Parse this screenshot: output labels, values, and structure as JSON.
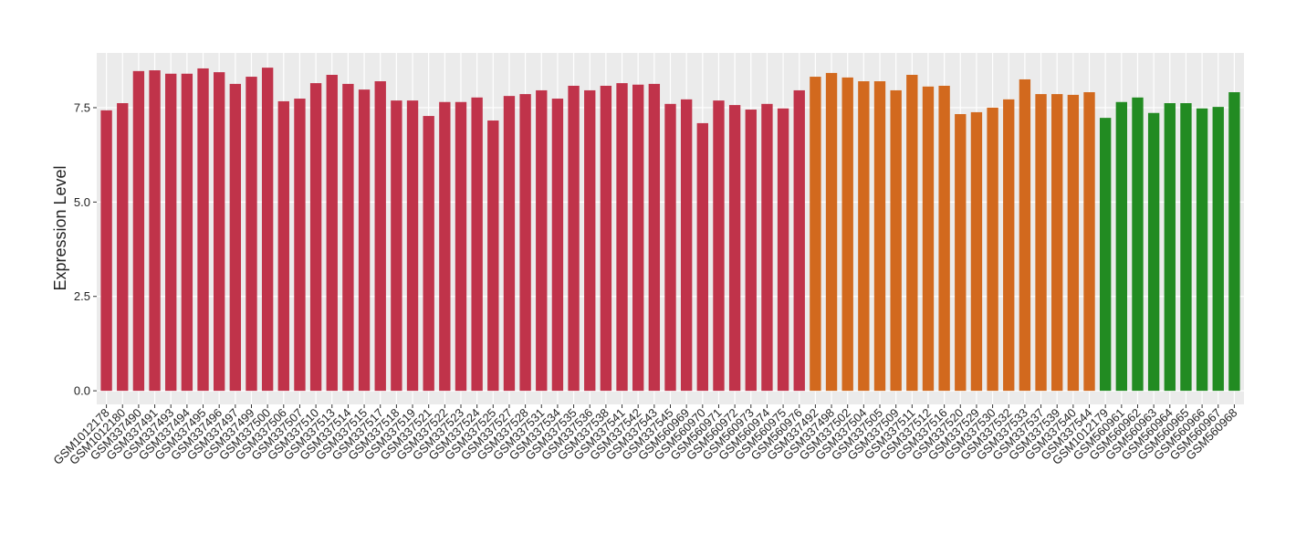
{
  "chart_data": {
    "type": "bar",
    "y_label": "Expression Level",
    "categories": [
      "GSM1012178",
      "GSM1012180",
      "GSM337490",
      "GSM337491",
      "GSM337493",
      "GSM337494",
      "GSM337495",
      "GSM337496",
      "GSM337497",
      "GSM337499",
      "GSM337500",
      "GSM337506",
      "GSM337507",
      "GSM337510",
      "GSM337513",
      "GSM337514",
      "GSM337515",
      "GSM337517",
      "GSM337518",
      "GSM337519",
      "GSM337521",
      "GSM337522",
      "GSM337523",
      "GSM337524",
      "GSM337525",
      "GSM337527",
      "GSM337528",
      "GSM337531",
      "GSM337534",
      "GSM337535",
      "GSM337536",
      "GSM337538",
      "GSM337541",
      "GSM337542",
      "GSM337543",
      "GSM337545",
      "GSM560969",
      "GSM560970",
      "GSM560971",
      "GSM560972",
      "GSM560973",
      "GSM560974",
      "GSM560975",
      "GSM560976",
      "GSM337492",
      "GSM337498",
      "GSM337502",
      "GSM337504",
      "GSM337505",
      "GSM337509",
      "GSM337511",
      "GSM337512",
      "GSM337516",
      "GSM337520",
      "GSM337529",
      "GSM337530",
      "GSM337532",
      "GSM337533",
      "GSM337537",
      "GSM337539",
      "GSM337540",
      "GSM337544",
      "GSM1012179",
      "GSM560961",
      "GSM560962",
      "GSM560963",
      "GSM560964",
      "GSM560965",
      "GSM560966",
      "GSM560967",
      "GSM560968"
    ],
    "values": [
      7.43,
      7.62,
      8.47,
      8.49,
      8.4,
      8.4,
      8.54,
      8.44,
      8.13,
      8.32,
      8.56,
      7.67,
      7.74,
      8.15,
      8.37,
      8.13,
      7.98,
      8.2,
      7.69,
      7.69,
      7.28,
      7.65,
      7.65,
      7.77,
      7.16,
      7.81,
      7.86,
      7.96,
      7.74,
      8.08,
      7.96,
      8.08,
      8.15,
      8.11,
      8.13,
      7.6,
      7.72,
      7.09,
      7.69,
      7.57,
      7.45,
      7.6,
      7.48,
      7.96,
      8.32,
      8.42,
      8.3,
      8.2,
      8.2,
      7.96,
      8.37,
      8.06,
      8.08,
      7.33,
      7.38,
      7.5,
      7.72,
      8.25,
      7.86,
      7.86,
      7.84,
      7.91,
      7.23,
      7.65,
      7.77,
      7.36,
      7.62,
      7.62,
      7.48,
      7.52,
      7.91
    ],
    "colors": [
      "#c0334a",
      "#c0334a",
      "#c0334a",
      "#c0334a",
      "#c0334a",
      "#c0334a",
      "#c0334a",
      "#c0334a",
      "#c0334a",
      "#c0334a",
      "#c0334a",
      "#c0334a",
      "#c0334a",
      "#c0334a",
      "#c0334a",
      "#c0334a",
      "#c0334a",
      "#c0334a",
      "#c0334a",
      "#c0334a",
      "#c0334a",
      "#c0334a",
      "#c0334a",
      "#c0334a",
      "#c0334a",
      "#c0334a",
      "#c0334a",
      "#c0334a",
      "#c0334a",
      "#c0334a",
      "#c0334a",
      "#c0334a",
      "#c0334a",
      "#c0334a",
      "#c0334a",
      "#c0334a",
      "#c0334a",
      "#c0334a",
      "#c0334a",
      "#c0334a",
      "#c0334a",
      "#c0334a",
      "#c0334a",
      "#c0334a",
      "#d2691e",
      "#d2691e",
      "#d2691e",
      "#d2691e",
      "#d2691e",
      "#d2691e",
      "#d2691e",
      "#d2691e",
      "#d2691e",
      "#d2691e",
      "#d2691e",
      "#d2691e",
      "#d2691e",
      "#d2691e",
      "#d2691e",
      "#d2691e",
      "#d2691e",
      "#d2691e",
      "#228b22",
      "#228b22",
      "#228b22",
      "#228b22",
      "#228b22",
      "#228b22",
      "#228b22",
      "#228b22",
      "#228b22"
    ],
    "ylim": [
      -0.36,
      8.95
    ],
    "yticks": [
      {
        "value": 0,
        "label": "0.0"
      },
      {
        "value": 2.5,
        "label": "2.5"
      },
      {
        "value": 5,
        "label": "5.0"
      },
      {
        "value": 7.5,
        "label": "7.5"
      }
    ],
    "grid": true
  }
}
